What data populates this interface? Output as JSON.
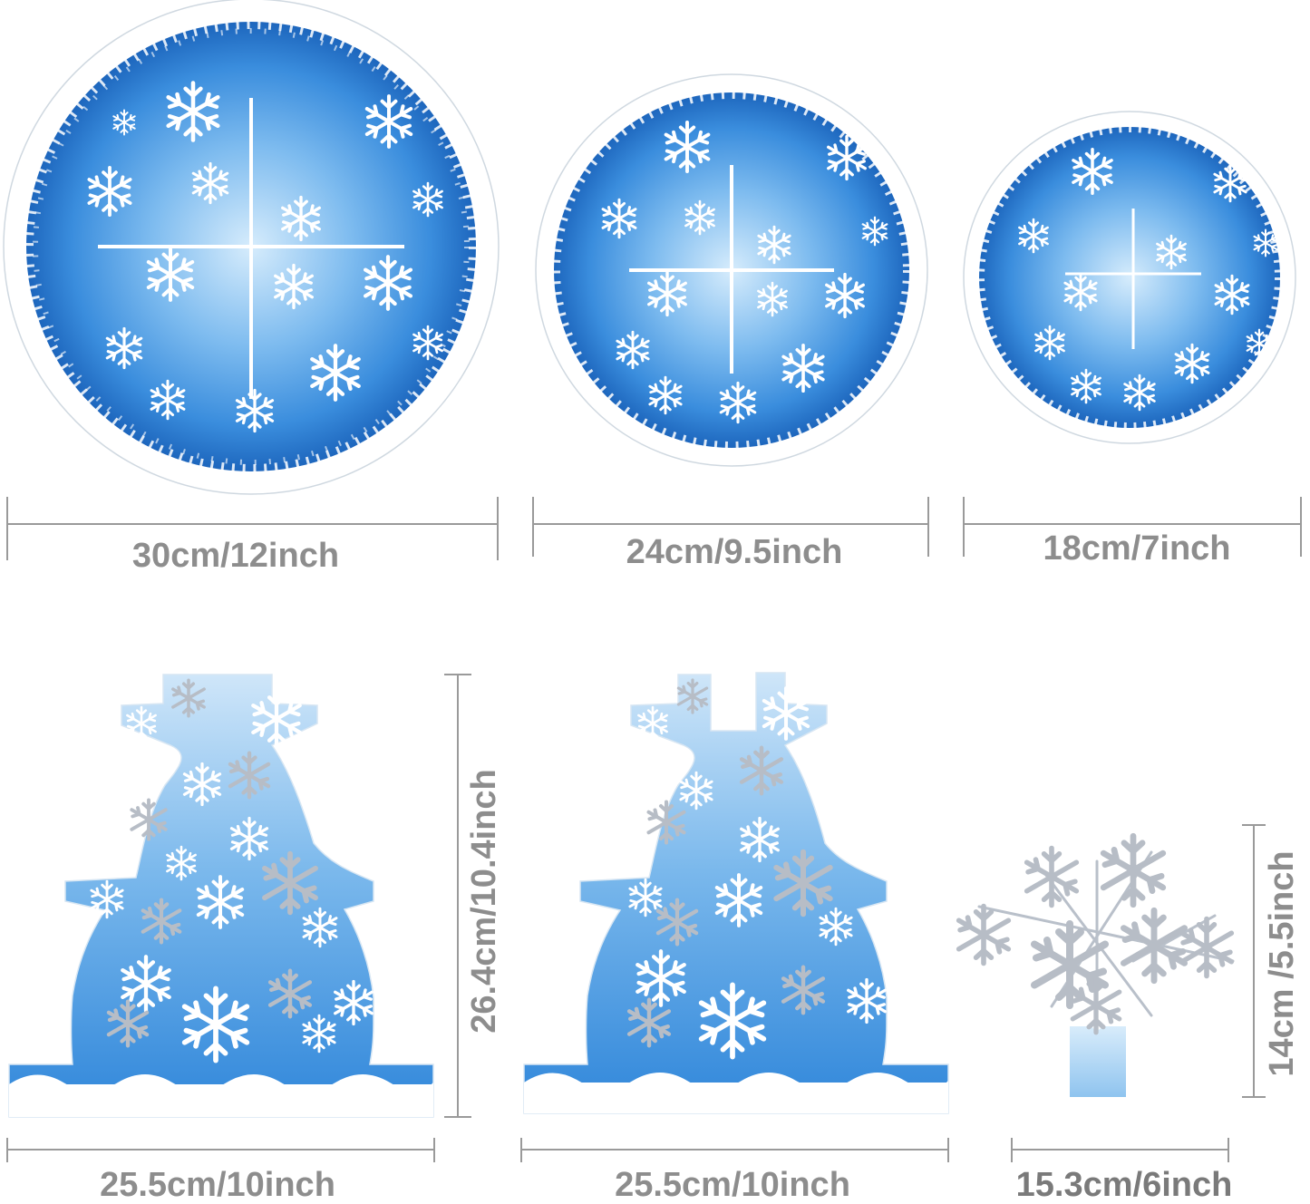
{
  "colors": {
    "disc_edge": "#1f6fc4",
    "disc_mid": "#5aa9ea",
    "disc_center": "#cfe8fb",
    "standee_top": "#c9e3f8",
    "standee_bottom": "#3e93df",
    "snowflake": "#ffffff",
    "glitter": "#b8bfc8",
    "dimension_line": "#9a9a9a",
    "dimension_text": "#8d8d8d"
  },
  "icons": [
    "snowflake-icon",
    "snowman-standee",
    "snowflake-topper"
  ],
  "dimensions": {
    "disc_large": "30cm/12inch",
    "disc_medium": "24cm/9.5inch",
    "disc_small": "18cm/7inch",
    "standee_left_width": "25.5cm/10inch",
    "standee_height": "26.4cm/10.4inch",
    "standee_right_width": "25.5cm/10inch",
    "topper_width": "15.3cm/6inch",
    "topper_height": "14cm /5.5inch"
  }
}
